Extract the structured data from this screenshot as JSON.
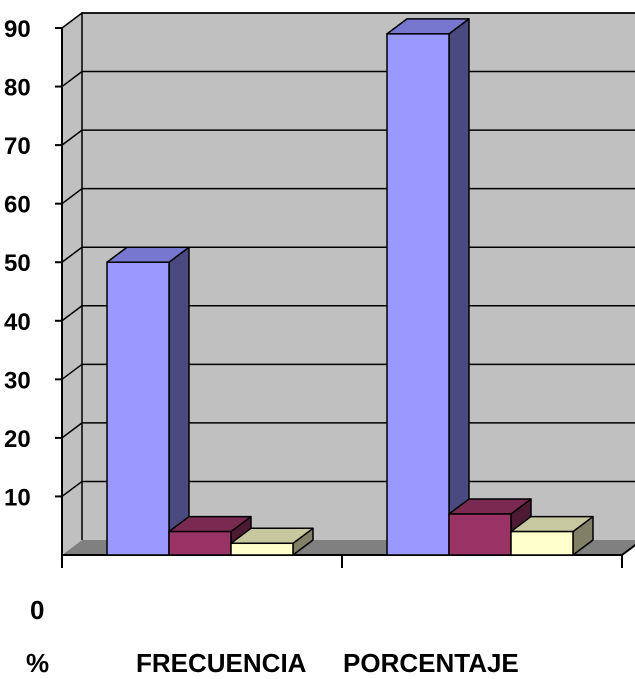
{
  "colors": {
    "wall": "#c0c0c0",
    "floor": "#808080",
    "grid": "#000000",
    "series": [
      {
        "front": "#9999ff",
        "side": "#4a4a80",
        "top": "#7777d0"
      },
      {
        "front": "#993366",
        "side": "#4d1a33",
        "top": "#7a2a50"
      },
      {
        "front": "#ffffcc",
        "side": "#808066",
        "top": "#c8c8a0"
      }
    ]
  },
  "chart_data": {
    "type": "bar",
    "style": "3d-clustered-column",
    "categories": [
      "",
      ""
    ],
    "series": [
      {
        "values": [
          50,
          89
        ]
      },
      {
        "values": [
          4,
          7
        ]
      },
      {
        "values": [
          2,
          4
        ]
      }
    ],
    "yticks": [
      "10",
      "20",
      "30",
      "40",
      "50",
      "60",
      "70",
      "80",
      "90"
    ],
    "ylim": [
      0,
      90
    ],
    "grid": true,
    "legend": "none"
  },
  "labels": {
    "zero": "0",
    "percent": "%",
    "frecuencia": "FRECUENCIA",
    "porcentaje": "PORCENTAJE"
  }
}
